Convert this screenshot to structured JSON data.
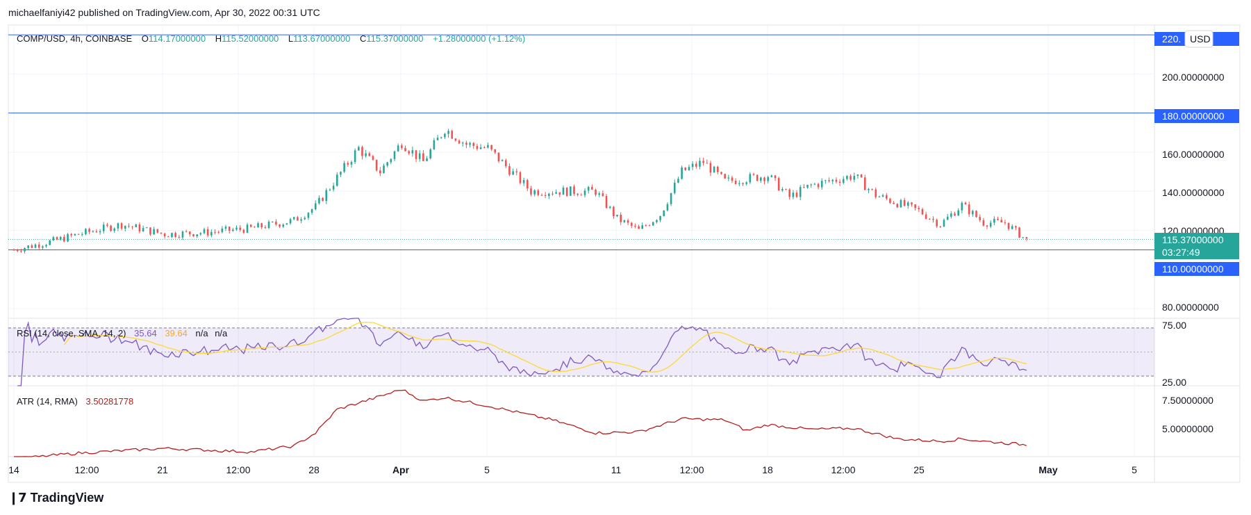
{
  "header": {
    "published": "michaelfaniyi42 published on TradingView.com, Apr 30, 2022 00:31 UTC"
  },
  "legend": {
    "symbol": "COMP/USD, 4h, COINBASE",
    "o_label": "O",
    "o_value": "114.17000000",
    "h_label": "H",
    "h_value": "115.52000000",
    "l_label": "L",
    "l_value": "113.67000000",
    "c_label": "C",
    "c_value": "115.37000000",
    "change": "+1.28000000 (+1.12%)"
  },
  "price_axis": {
    "ticks": [
      "200.00000000",
      "160.00000000",
      "140.00000000",
      "120.00000000",
      "80.00000000"
    ],
    "currency": "USD",
    "level_220_label": "220.",
    "level_180_label": "180.00000000",
    "level_110_label": "110.00000000",
    "last_price": "115.37000000",
    "countdown": "03:27:49"
  },
  "rsi": {
    "label": "RSI (14, close, SMA, 14, 2)",
    "value": "35.64",
    "sma": "39.64",
    "na1": "n/a",
    "na2": "n/a",
    "upper_tick": "75.00",
    "lower_tick": "25.00"
  },
  "atr": {
    "label": "ATR (14, RMA)",
    "value": "3.50281778",
    "tick_high": "7.50000000",
    "tick_low": "5.00000000"
  },
  "time_axis": {
    "labels": [
      "14",
      "12:00",
      "21",
      "12:00",
      "28",
      "Apr",
      "5",
      "11",
      "12:00",
      "18",
      "12:00",
      "25",
      "May",
      "5"
    ]
  },
  "footer": {
    "brand": "TradingView"
  },
  "colors": {
    "up": "#26a69a",
    "down": "#ef5350",
    "level": "#2962ff",
    "rsi": "#7e57c2",
    "rsi_sma": "#fdd835",
    "atr": "#b71c1c"
  },
  "chart_data": {
    "type": "candlestick",
    "symbol": "COMP/USD",
    "interval": "4h",
    "exchange": "COINBASE",
    "x_range": [
      "Mar 14",
      "May 5"
    ],
    "y_range": [
      75,
      225
    ],
    "horizontal_levels": [
      220,
      180,
      110
    ],
    "last_close": 115.37,
    "anchors": [
      {
        "date": "Mar 14",
        "price": 110
      },
      {
        "date": "Mar 16",
        "price": 115
      },
      {
        "date": "Mar 17",
        "price": 118
      },
      {
        "date": "Mar 19",
        "price": 123
      },
      {
        "date": "Mar 21",
        "price": 118
      },
      {
        "date": "Mar 23",
        "price": 119
      },
      {
        "date": "Mar 25",
        "price": 121
      },
      {
        "date": "Mar 27",
        "price": 125
      },
      {
        "date": "Mar 28",
        "price": 132
      },
      {
        "date": "Mar 30",
        "price": 162
      },
      {
        "date": "Mar 31",
        "price": 150
      },
      {
        "date": "Apr 1",
        "price": 165
      },
      {
        "date": "Apr 2",
        "price": 155
      },
      {
        "date": "Apr 3",
        "price": 172
      },
      {
        "date": "Apr 4",
        "price": 164
      },
      {
        "date": "Apr 5",
        "price": 162
      },
      {
        "date": "Apr 7",
        "price": 140
      },
      {
        "date": "Apr 8",
        "price": 140
      },
      {
        "date": "Apr 10",
        "price": 140
      },
      {
        "date": "Apr 11",
        "price": 126
      },
      {
        "date": "Apr 12",
        "price": 120
      },
      {
        "date": "Apr 13",
        "price": 128
      },
      {
        "date": "Apr 14",
        "price": 150
      },
      {
        "date": "Apr 15",
        "price": 155
      },
      {
        "date": "Apr 16",
        "price": 145
      },
      {
        "date": "Apr 18",
        "price": 148
      },
      {
        "date": "Apr 19",
        "price": 137
      },
      {
        "date": "Apr 20",
        "price": 143
      },
      {
        "date": "Apr 22",
        "price": 148
      },
      {
        "date": "Apr 23",
        "price": 138
      },
      {
        "date": "Apr 24",
        "price": 134
      },
      {
        "date": "Apr 25",
        "price": 130
      },
      {
        "date": "Apr 26",
        "price": 123
      },
      {
        "date": "Apr 27",
        "price": 133
      },
      {
        "date": "Apr 28",
        "price": 124
      },
      {
        "date": "Apr 29",
        "price": 124
      },
      {
        "date": "Apr 30",
        "price": 115
      }
    ],
    "rsi_range": [
      15,
      85
    ],
    "atr_range": [
      2.5,
      8.5
    ],
    "atr_anchors": [
      {
        "date": "Mar 14",
        "value": 2.3
      },
      {
        "date": "Mar 17",
        "value": 2.8
      },
      {
        "date": "Mar 21",
        "value": 3.2
      },
      {
        "date": "Mar 25",
        "value": 2.9
      },
      {
        "date": "Mar 27",
        "value": 3.4
      },
      {
        "date": "Mar 28",
        "value": 4.5
      },
      {
        "date": "Mar 29",
        "value": 6.5
      },
      {
        "date": "Mar 31",
        "value": 7.6
      },
      {
        "date": "Apr 1",
        "value": 8.2
      },
      {
        "date": "Apr 2",
        "value": 7.2
      },
      {
        "date": "Apr 3",
        "value": 7.5
      },
      {
        "date": "Apr 5",
        "value": 6.8
      },
      {
        "date": "Apr 8",
        "value": 5.6
      },
      {
        "date": "Apr 10",
        "value": 4.5
      },
      {
        "date": "Apr 12",
        "value": 4.6
      },
      {
        "date": "Apr 14",
        "value": 5.7
      },
      {
        "date": "Apr 16",
        "value": 5.6
      },
      {
        "date": "Apr 17",
        "value": 4.7
      },
      {
        "date": "Apr 18",
        "value": 5.2
      },
      {
        "date": "Apr 20",
        "value": 4.8
      },
      {
        "date": "Apr 22",
        "value": 4.9
      },
      {
        "date": "Apr 24",
        "value": 4.0
      },
      {
        "date": "Apr 26",
        "value": 3.8
      },
      {
        "date": "Apr 27",
        "value": 4.0
      },
      {
        "date": "Apr 28",
        "value": 3.8
      },
      {
        "date": "Apr 30",
        "value": 3.5
      }
    ]
  }
}
